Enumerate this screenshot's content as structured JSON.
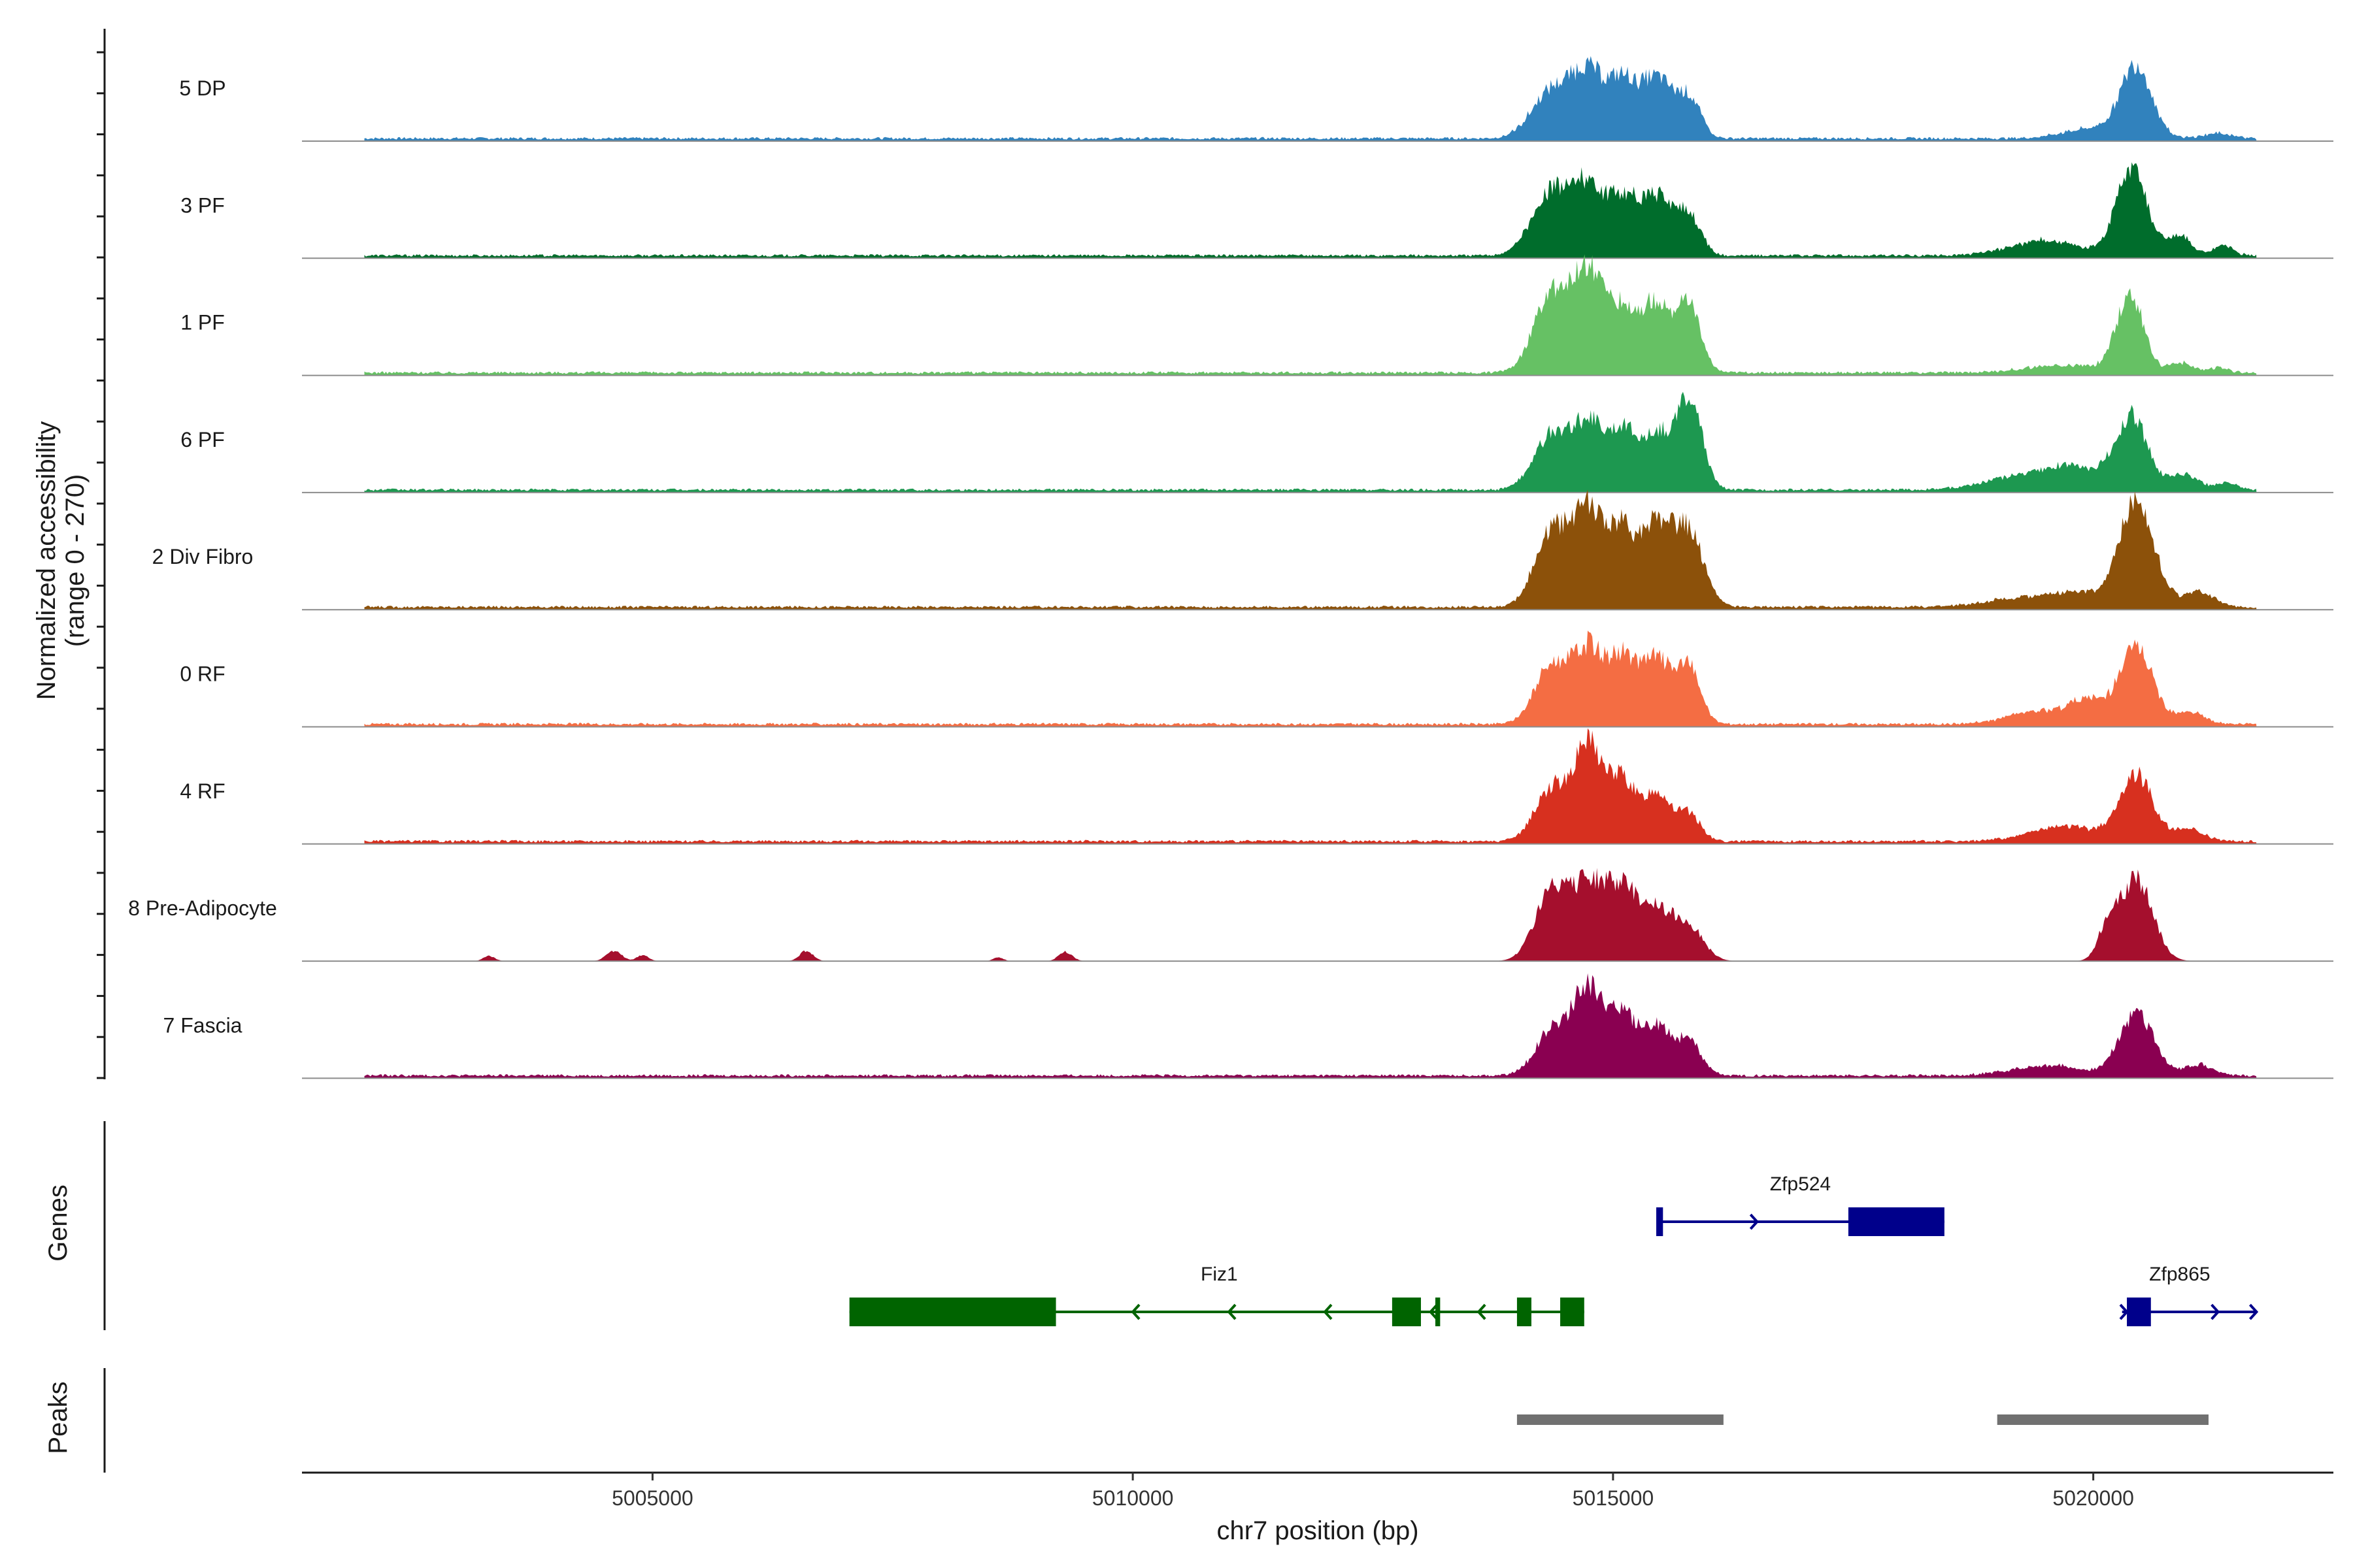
{
  "chart_data": {
    "type": "area",
    "title": "",
    "xlabel": "chr7 position (bp)",
    "ylabel": "Normalized accessibility",
    "ylabel_range": "(range 0 - 270)",
    "ylim": [
      0,
      270
    ],
    "xlim": [
      5001350,
      5022500
    ],
    "x_ticks": [
      5005000,
      5010000,
      5015000,
      5020000
    ],
    "x_tick_labels": [
      "5005000",
      "5010000",
      "5015000",
      "5020000"
    ],
    "track_panel_labels": {
      "genes": "Genes",
      "peaks": "Peaks"
    },
    "signal_extent": [
      5002000,
      5021700
    ],
    "series": [
      {
        "name": "5 DP",
        "color": "#3182bd",
        "baseline": 3,
        "noise": 5,
        "peaks": [
          [
            5014350,
            90,
            200
          ],
          [
            5014750,
            130,
            180
          ],
          [
            5015100,
            90,
            130
          ],
          [
            5015450,
            120,
            180
          ],
          [
            5015800,
            70,
            120
          ],
          [
            5020000,
            20,
            300
          ],
          [
            5020450,
            140,
            160
          ],
          [
            5021300,
            10,
            150
          ]
        ]
      },
      {
        "name": "3 PF",
        "color": "#006d2c",
        "baseline": 3,
        "noise": 5,
        "peaks": [
          [
            5014350,
            120,
            200
          ],
          [
            5014750,
            130,
            180
          ],
          [
            5015100,
            90,
            130
          ],
          [
            5015450,
            120,
            180
          ],
          [
            5015800,
            70,
            120
          ],
          [
            5019500,
            30,
            350
          ],
          [
            5020400,
            170,
            160
          ],
          [
            5020900,
            40,
            120
          ],
          [
            5021350,
            20,
            100
          ]
        ]
      },
      {
        "name": "1 PF",
        "color": "#66c164",
        "baseline": 3,
        "noise": 5,
        "peaks": [
          [
            5014350,
            150,
            180
          ],
          [
            5014750,
            200,
            170
          ],
          [
            5015100,
            100,
            130
          ],
          [
            5015450,
            140,
            170
          ],
          [
            5015800,
            120,
            120
          ],
          [
            5019700,
            15,
            400
          ],
          [
            5020380,
            150,
            140
          ],
          [
            5020900,
            20,
            120
          ],
          [
            5021300,
            10,
            100
          ]
        ]
      },
      {
        "name": "6 PF",
        "color": "#1d9850",
        "baseline": 3,
        "noise": 5,
        "peaks": [
          [
            5014350,
            100,
            180
          ],
          [
            5014750,
            130,
            180
          ],
          [
            5015100,
            100,
            130
          ],
          [
            5015450,
            110,
            170
          ],
          [
            5015800,
            170,
            130
          ],
          [
            5019200,
            25,
            350
          ],
          [
            5019800,
            40,
            300
          ],
          [
            5020400,
            140,
            170
          ],
          [
            5020950,
            30,
            150
          ],
          [
            5021400,
            15,
            100
          ]
        ]
      },
      {
        "name": "2 Div Fibro",
        "color": "#8c510a",
        "baseline": 3,
        "noise": 5,
        "peaks": [
          [
            5014350,
            140,
            170
          ],
          [
            5014750,
            190,
            180
          ],
          [
            5015100,
            120,
            130
          ],
          [
            5015450,
            160,
            170
          ],
          [
            5015800,
            140,
            150
          ],
          [
            5019200,
            15,
            350
          ],
          [
            5019800,
            25,
            300
          ],
          [
            5020450,
            200,
            190
          ],
          [
            5021100,
            30,
            150
          ]
        ]
      },
      {
        "name": "0 RF",
        "color": "#f46d43",
        "baseline": 3,
        "noise": 5,
        "peaks": [
          [
            5014350,
            110,
            170
          ],
          [
            5014750,
            150,
            170
          ],
          [
            5015100,
            110,
            130
          ],
          [
            5015450,
            130,
            170
          ],
          [
            5015800,
            100,
            120
          ],
          [
            5019400,
            25,
            300
          ],
          [
            5019950,
            45,
            200
          ],
          [
            5020450,
            150,
            170
          ],
          [
            5021000,
            25,
            150
          ]
        ]
      },
      {
        "name": "4 RF",
        "color": "#d7301f",
        "baseline": 3,
        "noise": 5,
        "peaks": [
          [
            5014350,
            100,
            170
          ],
          [
            5014750,
            190,
            160
          ],
          [
            5015100,
            110,
            120
          ],
          [
            5015450,
            100,
            150
          ],
          [
            5015800,
            50,
            120
          ],
          [
            5019700,
            30,
            350
          ],
          [
            5020450,
            130,
            170
          ],
          [
            5021000,
            25,
            150
          ]
        ]
      },
      {
        "name": "8 Pre-Adipocyte",
        "color": "#a50f2d",
        "baseline": 0,
        "noise": 0,
        "peaks": [
          [
            5014350,
            130,
            170
          ],
          [
            5014750,
            150,
            180
          ],
          [
            5015100,
            120,
            150
          ],
          [
            5015450,
            100,
            180
          ],
          [
            5015800,
            60,
            150
          ],
          [
            5020450,
            160,
            170
          ],
          [
            5020150,
            60,
            100
          ],
          [
            5004600,
            20,
            80
          ],
          [
            5004900,
            12,
            60
          ],
          [
            5006600,
            20,
            70
          ],
          [
            5009300,
            18,
            70
          ],
          [
            5003300,
            10,
            60
          ],
          [
            5008600,
            8,
            50
          ]
        ]
      },
      {
        "name": "7 Fascia",
        "color": "#8a0051",
        "baseline": 3,
        "noise": 5,
        "peaks": [
          [
            5014350,
            80,
            170
          ],
          [
            5014750,
            170,
            180
          ],
          [
            5015100,
            100,
            130
          ],
          [
            5015450,
            100,
            160
          ],
          [
            5015800,
            60,
            130
          ],
          [
            5019500,
            20,
            350
          ],
          [
            5020450,
            120,
            180
          ],
          [
            5021100,
            20,
            150
          ]
        ]
      }
    ],
    "genes": [
      {
        "name": "Zfp524",
        "color": "#00008b",
        "strand": "+",
        "start": 5015450,
        "end": 5018450,
        "row": 0,
        "exons": [
          [
            5015450,
            5015520
          ],
          [
            5017450,
            5018450
          ]
        ],
        "arrows": [
          5016500
        ]
      },
      {
        "name": "Fiz1",
        "color": "#006400",
        "strand": "-",
        "start": 5007050,
        "end": 5014700,
        "row": 1,
        "exons": [
          [
            5007050,
            5009200
          ],
          [
            5012700,
            5013000
          ],
          [
            5013150,
            5013200
          ],
          [
            5014000,
            5014150
          ],
          [
            5014450,
            5014700
          ]
        ],
        "arrows": [
          5010000,
          5011000,
          5012000,
          5013100,
          5013600
        ]
      },
      {
        "name": "Zfp865",
        "color": "#00008b",
        "strand": "+",
        "start": 5020300,
        "end": 5021700,
        "row": 1,
        "exons": [
          [
            5020350,
            5020600
          ]
        ],
        "arrows": [
          5020350,
          5021300,
          5021700
        ]
      }
    ],
    "peak_regions": [
      {
        "start": 5014000,
        "end": 5016150,
        "color": "#707070"
      },
      {
        "start": 5019000,
        "end": 5021200,
        "color": "#707070"
      }
    ]
  }
}
